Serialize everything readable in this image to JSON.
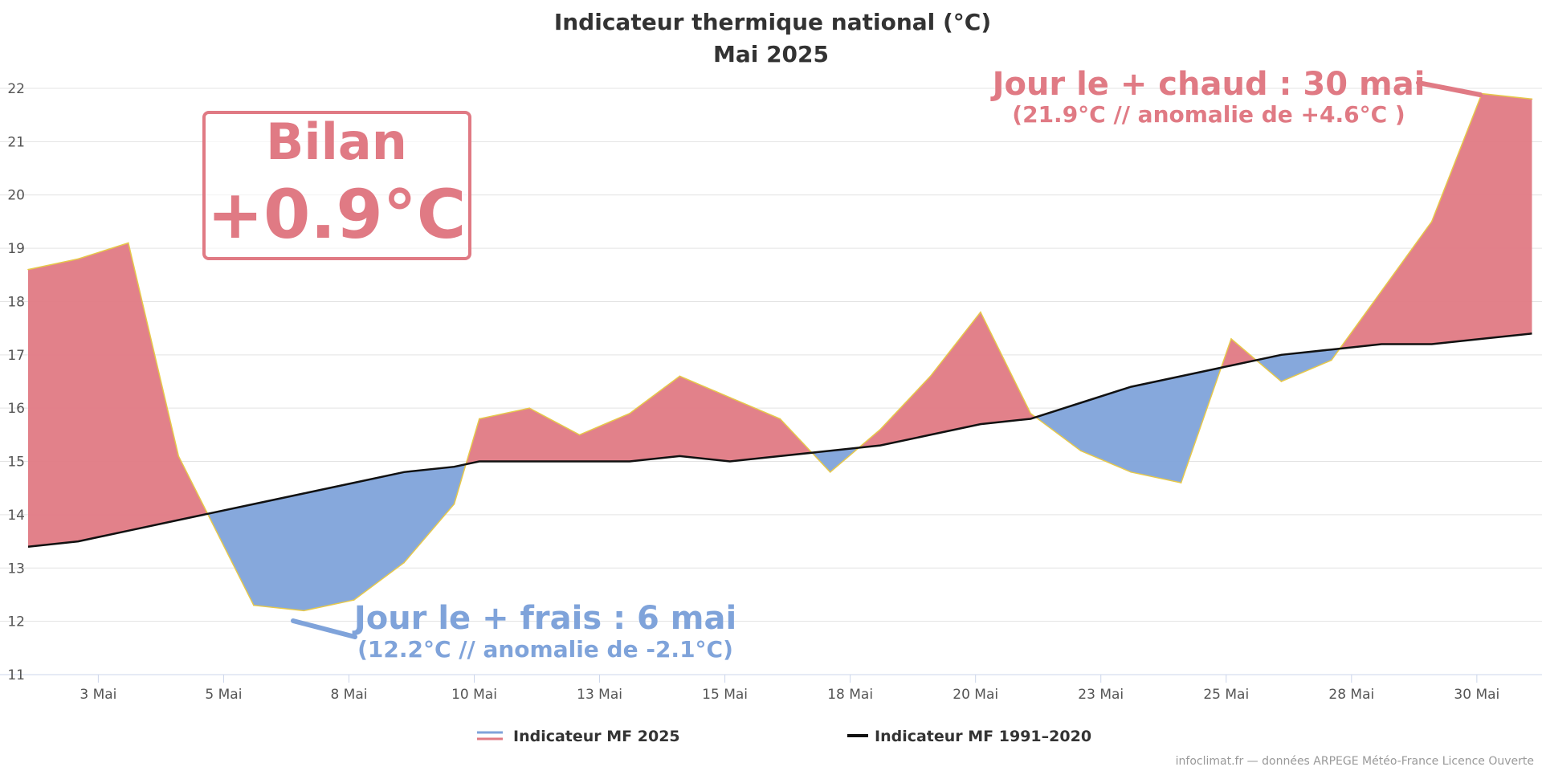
{
  "chart_data": {
    "type": "area",
    "title": "Indicateur thermique national (°C)",
    "subtitle": "Mai 2025",
    "ylim": [
      11,
      22
    ],
    "yticks": [
      11,
      12,
      13,
      14,
      15,
      16,
      17,
      18,
      19,
      20,
      21,
      22
    ],
    "xlim": [
      1.6,
      31.8
    ],
    "xticks": [
      {
        "day": 3,
        "label": "3 Mai"
      },
      {
        "day": 5.5,
        "label": "5 Mai"
      },
      {
        "day": 8,
        "label": "8 Mai"
      },
      {
        "day": 10.5,
        "label": "10 Mai"
      },
      {
        "day": 13,
        "label": "13 Mai"
      },
      {
        "day": 15.5,
        "label": "15 Mai"
      },
      {
        "day": 18,
        "label": "18 Mai"
      },
      {
        "day": 20.5,
        "label": "20 Mai"
      },
      {
        "day": 23,
        "label": "23 Mai"
      },
      {
        "day": 25.5,
        "label": "25 Mai"
      },
      {
        "day": 28,
        "label": "28 Mai"
      },
      {
        "day": 30.5,
        "label": "30 Mai"
      }
    ],
    "series": [
      {
        "name": "Indicateur MF 2025",
        "x": [
          1.6,
          2.6,
          3.6,
          4.6,
          6.1,
          7.1,
          8.1,
          9.1,
          10.1,
          10.6,
          11.6,
          12.6,
          13.6,
          14.6,
          15.6,
          16.6,
          17.6,
          18.6,
          19.6,
          20.6,
          21.6,
          22.6,
          23.6,
          24.6,
          25.6,
          26.6,
          27.6,
          28.6,
          29.6,
          30.6,
          31.6
        ],
        "values": [
          18.6,
          18.8,
          19.1,
          15.1,
          12.3,
          12.2,
          12.4,
          13.1,
          14.2,
          15.8,
          16.0,
          15.5,
          15.9,
          16.6,
          16.2,
          15.8,
          14.8,
          15.6,
          16.6,
          17.8,
          15.9,
          15.2,
          14.8,
          14.6,
          17.3,
          16.5,
          16.9,
          18.2,
          19.5,
          21.9,
          21.8
        ],
        "color_above": "#e07a84",
        "color_below": "#7fa3da",
        "line_color": "#e6c84a"
      },
      {
        "name": "Indicateur MF 1991-2020",
        "x": [
          1.6,
          2.6,
          3.6,
          4.6,
          6.1,
          7.1,
          8.1,
          9.1,
          10.1,
          10.6,
          11.6,
          12.6,
          13.6,
          14.6,
          15.6,
          16.6,
          17.6,
          18.6,
          19.6,
          20.6,
          21.6,
          22.6,
          23.6,
          24.6,
          25.6,
          26.6,
          27.6,
          28.6,
          29.6,
          30.6,
          31.6
        ],
        "values": [
          13.4,
          13.5,
          13.7,
          13.9,
          14.2,
          14.4,
          14.6,
          14.8,
          14.9,
          15.0,
          15.0,
          15.0,
          15.0,
          15.1,
          15.0,
          15.1,
          15.2,
          15.3,
          15.5,
          15.7,
          15.8,
          16.1,
          16.4,
          16.6,
          16.8,
          17.0,
          17.1,
          17.2,
          17.2,
          17.3,
          17.4
        ],
        "color": "#111111"
      }
    ],
    "annotations": {
      "hot_title": "Jour le + chaud : 30 mai",
      "hot_detail": "(21.9°C // anomalie de +4.6°C )",
      "cold_title": "Jour le + frais : 6 mai",
      "cold_detail": "(12.2°C // anomalie de -2.1°C)",
      "bilan_label": "Bilan",
      "bilan_value": "+0.9°C"
    },
    "legend": {
      "placement": "bottom",
      "items": [
        "Indicateur MF 2025",
        "Indicateur MF 1991–2020"
      ]
    },
    "credit": "infoclimat.fr — données ARPEGE Météo-France Licence Ouverte",
    "colors": {
      "warm": "#e07a84",
      "cold": "#7fa3da",
      "grid": "#e3e3e3",
      "axis": "#ccd6eb"
    }
  }
}
